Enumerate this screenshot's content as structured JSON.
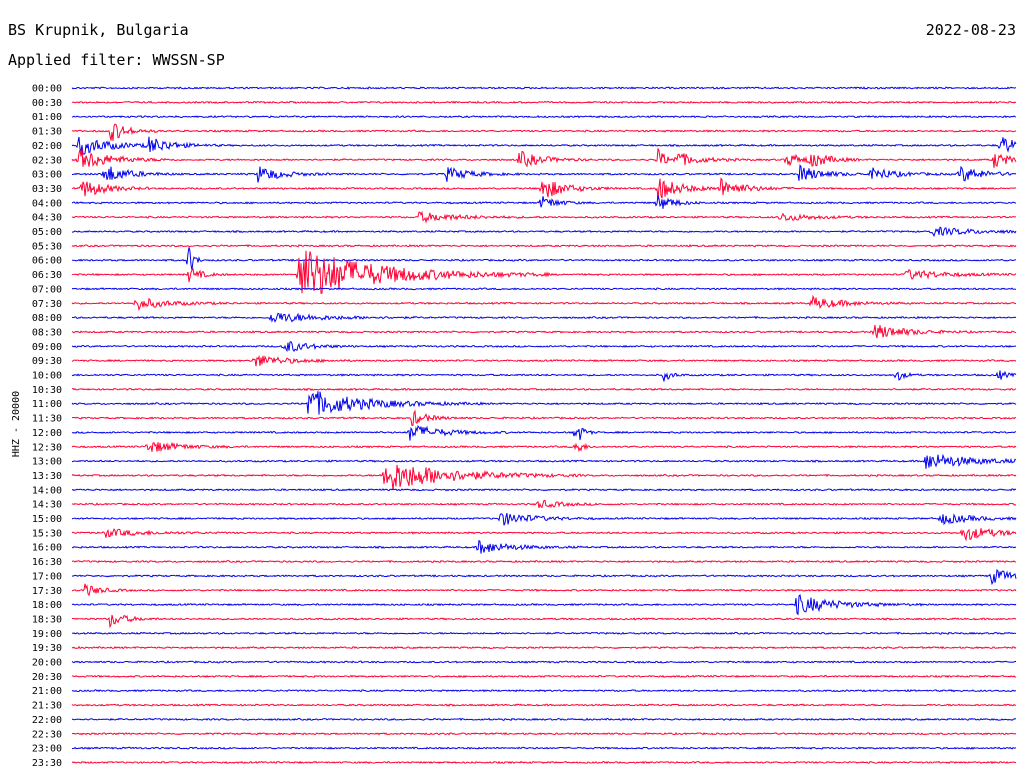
{
  "header": {
    "station": "BS Krupnik, Bulgaria",
    "date": "2022-08-23",
    "filter": "Applied filter: WWSSN-SP"
  },
  "colors": {
    "even_row": "#0000ee",
    "odd_row": "#ff0033",
    "background": "#ffffff"
  },
  "chart_data": {
    "type": "line",
    "title": "BS Krupnik, Bulgaria",
    "ylabel": "HHZ - 20000",
    "xlabel": "",
    "row_duration_minutes": 30,
    "row_labels": [
      "00:00",
      "00:30",
      "01:00",
      "01:30",
      "02:00",
      "02:30",
      "03:00",
      "03:30",
      "04:00",
      "04:30",
      "05:00",
      "05:30",
      "06:00",
      "06:30",
      "07:00",
      "07:30",
      "08:00",
      "08:30",
      "09:00",
      "09:30",
      "10:00",
      "10:30",
      "11:00",
      "11:30",
      "12:00",
      "12:30",
      "13:00",
      "13:30",
      "14:00",
      "14:30",
      "15:00",
      "15:30",
      "16:00",
      "16:30",
      "17:00",
      "17:30",
      "18:00",
      "18:30",
      "19:00",
      "19:30",
      "20:00",
      "20:30",
      "21:00",
      "21:30",
      "22:00",
      "22:30",
      "23:00",
      "23:30"
    ],
    "grid": false,
    "legend": "none",
    "series_note_omitted": true,
    "events": [
      {
        "row": 3,
        "minute": 1.2,
        "amplitude": 1.6,
        "duration": 1.0
      },
      {
        "row": 4,
        "minute": 0.2,
        "amplitude": 1.4,
        "duration": 2.0
      },
      {
        "row": 4,
        "minute": 2.4,
        "amplitude": 1.2,
        "duration": 1.5
      },
      {
        "row": 4,
        "minute": 29.5,
        "amplitude": 1.5,
        "duration": 1.0
      },
      {
        "row": 5,
        "minute": 0.2,
        "amplitude": 1.6,
        "duration": 2.0
      },
      {
        "row": 5,
        "minute": 14.2,
        "amplitude": 1.2,
        "duration": 1.5
      },
      {
        "row": 5,
        "minute": 19.2,
        "amplitude": 1.0,
        "duration": 1.5
      },
      {
        "row": 5,
        "minute": 22.7,
        "amplitude": 0.9,
        "duration": 1.5
      },
      {
        "row": 5,
        "minute": 18.6,
        "amplitude": 1.6,
        "duration": 0.6
      },
      {
        "row": 5,
        "minute": 23.5,
        "amplitude": 1.0,
        "duration": 1.0
      },
      {
        "row": 5,
        "minute": 29.3,
        "amplitude": 1.2,
        "duration": 1.0
      },
      {
        "row": 6,
        "minute": 1.0,
        "amplitude": 1.4,
        "duration": 1.5
      },
      {
        "row": 6,
        "minute": 5.9,
        "amplitude": 1.2,
        "duration": 1.5
      },
      {
        "row": 6,
        "minute": 11.9,
        "amplitude": 1.0,
        "duration": 1.5
      },
      {
        "row": 6,
        "minute": 23.1,
        "amplitude": 1.2,
        "duration": 1.5
      },
      {
        "row": 6,
        "minute": 25.4,
        "amplitude": 1.0,
        "duration": 1.5
      },
      {
        "row": 6,
        "minute": 28.2,
        "amplitude": 1.2,
        "duration": 1.5
      },
      {
        "row": 7,
        "minute": 0.3,
        "amplitude": 1.4,
        "duration": 1.5
      },
      {
        "row": 7,
        "minute": 14.9,
        "amplitude": 1.7,
        "duration": 1.5
      },
      {
        "row": 7,
        "minute": 18.6,
        "amplitude": 1.7,
        "duration": 1.5
      },
      {
        "row": 7,
        "minute": 20.6,
        "amplitude": 1.4,
        "duration": 1.5
      },
      {
        "row": 8,
        "minute": 14.9,
        "amplitude": 1.0,
        "duration": 1.0
      },
      {
        "row": 8,
        "minute": 18.6,
        "amplitude": 1.2,
        "duration": 1.0
      },
      {
        "row": 9,
        "minute": 11.0,
        "amplitude": 0.7,
        "duration": 2.5
      },
      {
        "row": 9,
        "minute": 22.5,
        "amplitude": 0.6,
        "duration": 2.0
      },
      {
        "row": 10,
        "minute": 27.3,
        "amplitude": 0.6,
        "duration": 3.0
      },
      {
        "row": 12,
        "minute": 3.7,
        "amplitude": 3.0,
        "duration": 0.3
      },
      {
        "row": 13,
        "minute": 3.7,
        "amplitude": 1.1,
        "duration": 0.8
      },
      {
        "row": 13,
        "minute": 7.2,
        "amplitude": 4.0,
        "duration": 5.0
      },
      {
        "row": 13,
        "minute": 26.5,
        "amplitude": 0.7,
        "duration": 2.5
      },
      {
        "row": 15,
        "minute": 2.0,
        "amplitude": 0.9,
        "duration": 2.0
      },
      {
        "row": 15,
        "minute": 23.5,
        "amplitude": 0.9,
        "duration": 2.0
      },
      {
        "row": 16,
        "minute": 6.3,
        "amplitude": 0.8,
        "duration": 3.0
      },
      {
        "row": 17,
        "minute": 25.5,
        "amplitude": 1.1,
        "duration": 2.0
      },
      {
        "row": 18,
        "minute": 6.7,
        "amplitude": 1.0,
        "duration": 1.5
      },
      {
        "row": 19,
        "minute": 5.8,
        "amplitude": 0.9,
        "duration": 2.0
      },
      {
        "row": 20,
        "minute": 18.8,
        "amplitude": 0.9,
        "duration": 0.5
      },
      {
        "row": 20,
        "minute": 26.2,
        "amplitude": 0.9,
        "duration": 0.5
      },
      {
        "row": 20,
        "minute": 29.4,
        "amplitude": 0.9,
        "duration": 0.5
      },
      {
        "row": 22,
        "minute": 7.5,
        "amplitude": 2.0,
        "duration": 3.5
      },
      {
        "row": 23,
        "minute": 10.8,
        "amplitude": 1.1,
        "duration": 1.0
      },
      {
        "row": 24,
        "minute": 10.7,
        "amplitude": 1.2,
        "duration": 2.0
      },
      {
        "row": 24,
        "minute": 16.0,
        "amplitude": 2.2,
        "duration": 0.4
      },
      {
        "row": 25,
        "minute": 2.4,
        "amplitude": 0.9,
        "duration": 2.0
      },
      {
        "row": 25,
        "minute": 16.0,
        "amplitude": 1.4,
        "duration": 0.4
      },
      {
        "row": 26,
        "minute": 27.1,
        "amplitude": 1.2,
        "duration": 3.0
      },
      {
        "row": 27,
        "minute": 9.9,
        "amplitude": 2.4,
        "duration": 4.0
      },
      {
        "row": 29,
        "minute": 14.8,
        "amplitude": 0.6,
        "duration": 1.5
      },
      {
        "row": 30,
        "minute": 13.6,
        "amplitude": 1.0,
        "duration": 2.0
      },
      {
        "row": 30,
        "minute": 27.6,
        "amplitude": 0.8,
        "duration": 2.0
      },
      {
        "row": 31,
        "minute": 1.0,
        "amplitude": 0.6,
        "duration": 2.5
      },
      {
        "row": 31,
        "minute": 28.3,
        "amplitude": 1.1,
        "duration": 2.0
      },
      {
        "row": 32,
        "minute": 12.9,
        "amplitude": 1.0,
        "duration": 2.0
      },
      {
        "row": 34,
        "minute": 29.2,
        "amplitude": 1.1,
        "duration": 1.5
      },
      {
        "row": 35,
        "minute": 0.4,
        "amplitude": 0.9,
        "duration": 1.0
      },
      {
        "row": 36,
        "minute": 23.0,
        "amplitude": 1.4,
        "duration": 2.5
      },
      {
        "row": 37,
        "minute": 1.2,
        "amplitude": 1.1,
        "duration": 1.0
      }
    ]
  }
}
